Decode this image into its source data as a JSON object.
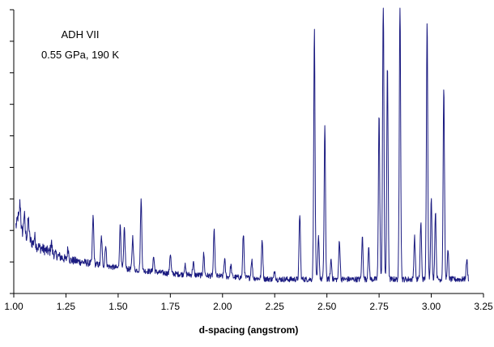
{
  "chart_data": {
    "type": "line",
    "title": "",
    "xlabel": "d-spacing (angstrom)",
    "ylabel": "",
    "xlim": [
      1.0,
      3.25
    ],
    "ylim": [
      0,
      1
    ],
    "x_ticks": [
      1.0,
      1.25,
      1.5,
      1.75,
      2.0,
      2.25,
      2.5,
      2.75,
      3.0,
      3.25
    ],
    "x_tick_labels": [
      "1.00",
      "1.25",
      "1.50",
      "1.75",
      "2.00",
      "2.25",
      "2.50",
      "2.75",
      "3.00",
      "3.25"
    ],
    "y_tick_count": 9,
    "y_tick_labels_shown": false,
    "grid": false,
    "annotations": [
      "ADH VII",
      "0.55 GPa, 190 K"
    ],
    "colors": {
      "series": "#1a1a80",
      "axis": "#000000"
    },
    "series": [
      {
        "x_range": [
          1.01,
          3.18
        ],
        "baseline": [
          [
            1.01,
            0.24
          ],
          [
            1.1,
            0.17
          ],
          [
            1.25,
            0.12
          ],
          [
            1.5,
            0.09
          ],
          [
            1.75,
            0.07
          ],
          [
            2.0,
            0.06
          ],
          [
            2.25,
            0.05
          ],
          [
            2.5,
            0.05
          ],
          [
            2.75,
            0.05
          ],
          [
            3.0,
            0.05
          ],
          [
            3.18,
            0.05
          ]
        ],
        "peaks": [
          {
            "x": 1.02,
            "y": 0.27
          },
          {
            "x": 1.03,
            "y": 0.32
          },
          {
            "x": 1.05,
            "y": 0.28
          },
          {
            "x": 1.07,
            "y": 0.26
          },
          {
            "x": 1.1,
            "y": 0.2
          },
          {
            "x": 1.18,
            "y": 0.18
          },
          {
            "x": 1.26,
            "y": 0.16
          },
          {
            "x": 1.38,
            "y": 0.27
          },
          {
            "x": 1.42,
            "y": 0.2
          },
          {
            "x": 1.44,
            "y": 0.17
          },
          {
            "x": 1.51,
            "y": 0.24
          },
          {
            "x": 1.53,
            "y": 0.23
          },
          {
            "x": 1.57,
            "y": 0.2
          },
          {
            "x": 1.61,
            "y": 0.33
          },
          {
            "x": 1.67,
            "y": 0.13
          },
          {
            "x": 1.75,
            "y": 0.14
          },
          {
            "x": 1.82,
            "y": 0.1
          },
          {
            "x": 1.86,
            "y": 0.11
          },
          {
            "x": 1.91,
            "y": 0.14
          },
          {
            "x": 1.96,
            "y": 0.22
          },
          {
            "x": 2.01,
            "y": 0.12
          },
          {
            "x": 2.04,
            "y": 0.1
          },
          {
            "x": 2.1,
            "y": 0.21
          },
          {
            "x": 2.14,
            "y": 0.12
          },
          {
            "x": 2.19,
            "y": 0.19
          },
          {
            "x": 2.25,
            "y": 0.08
          },
          {
            "x": 2.37,
            "y": 0.28
          },
          {
            "x": 2.44,
            "y": 0.93
          },
          {
            "x": 2.46,
            "y": 0.2
          },
          {
            "x": 2.49,
            "y": 0.59
          },
          {
            "x": 2.52,
            "y": 0.12
          },
          {
            "x": 2.56,
            "y": 0.19
          },
          {
            "x": 2.67,
            "y": 0.2
          },
          {
            "x": 2.7,
            "y": 0.16
          },
          {
            "x": 2.75,
            "y": 0.64
          },
          {
            "x": 2.77,
            "y": 1.05
          },
          {
            "x": 2.79,
            "y": 0.8
          },
          {
            "x": 2.85,
            "y": 1.05
          },
          {
            "x": 2.92,
            "y": 0.2
          },
          {
            "x": 2.95,
            "y": 0.25
          },
          {
            "x": 2.98,
            "y": 0.96
          },
          {
            "x": 3.0,
            "y": 0.33
          },
          {
            "x": 3.02,
            "y": 0.29
          },
          {
            "x": 3.06,
            "y": 0.73
          },
          {
            "x": 3.08,
            "y": 0.15
          },
          {
            "x": 3.17,
            "y": 0.12
          }
        ]
      }
    ]
  }
}
